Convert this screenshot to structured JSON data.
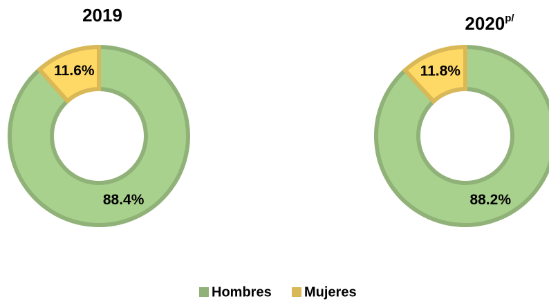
{
  "chart_data": [
    {
      "type": "pie",
      "title": "2019",
      "categories": [
        "Hombres",
        "Mujeres"
      ],
      "values": [
        88.4,
        11.6
      ],
      "value_labels": [
        "88.4%",
        "11.6%"
      ],
      "colors": [
        "#a9d18e",
        "#ffd966"
      ],
      "donut": true
    },
    {
      "type": "pie",
      "title": "2020",
      "title_superscript": "p/",
      "categories": [
        "Hombres",
        "Mujeres"
      ],
      "values": [
        88.2,
        11.8
      ],
      "value_labels": [
        "88.2%",
        "11.8%"
      ],
      "colors": [
        "#a9d18e",
        "#ffd966"
      ],
      "donut": true
    }
  ]
}
